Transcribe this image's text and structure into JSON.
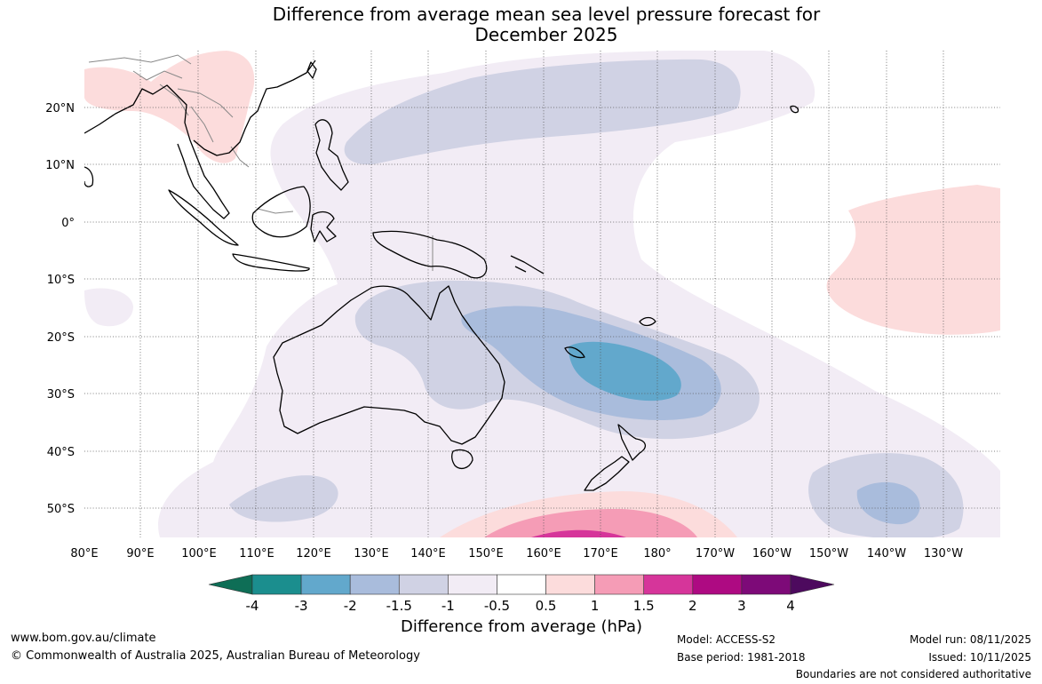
{
  "title_line1": "Difference from average mean sea level pressure forecast for",
  "title_line2": "December 2025",
  "lat_labels": [
    "20°N",
    "10°N",
    "0°",
    "10°S",
    "20°S",
    "30°S",
    "40°S",
    "50°S"
  ],
  "lon_labels": [
    "80°E",
    "90°E",
    "100°E",
    "110°E",
    "120°E",
    "130°E",
    "140°E",
    "150°E",
    "160°E",
    "170°E",
    "180°",
    "170°W",
    "160°W",
    "150°W",
    "140°W",
    "130°W"
  ],
  "legend": {
    "title": "Difference from average (hPa)",
    "ticks": [
      "-4",
      "-3",
      "-2",
      "-1.5",
      "-1",
      "-0.5",
      "0.5",
      "1",
      "1.5",
      "2",
      "3",
      "4"
    ],
    "colors": [
      "#1b8e8e",
      "#62a8cc",
      "#a9bcdc",
      "#d0d2e4",
      "#f2ecf5",
      "#ffffff",
      "#fcdcdc",
      "#f59cb6",
      "#d6359a",
      "#ae0a82",
      "#7d0a78"
    ],
    "under_color": "#0e6e56",
    "over_color": "#4d0a5e"
  },
  "footer": {
    "website": "www.bom.gov.au/climate",
    "copyright": "© Commonwealth of Australia 2025, Australian Bureau of Meteorology",
    "model": "Model: ACCESS-S2",
    "base_period": "Base period: 1981-2018",
    "model_run": "Model run: 08/11/2025",
    "issued": "Issued: 10/11/2025",
    "disclaimer": "Boundaries are not considered authoritative"
  }
}
